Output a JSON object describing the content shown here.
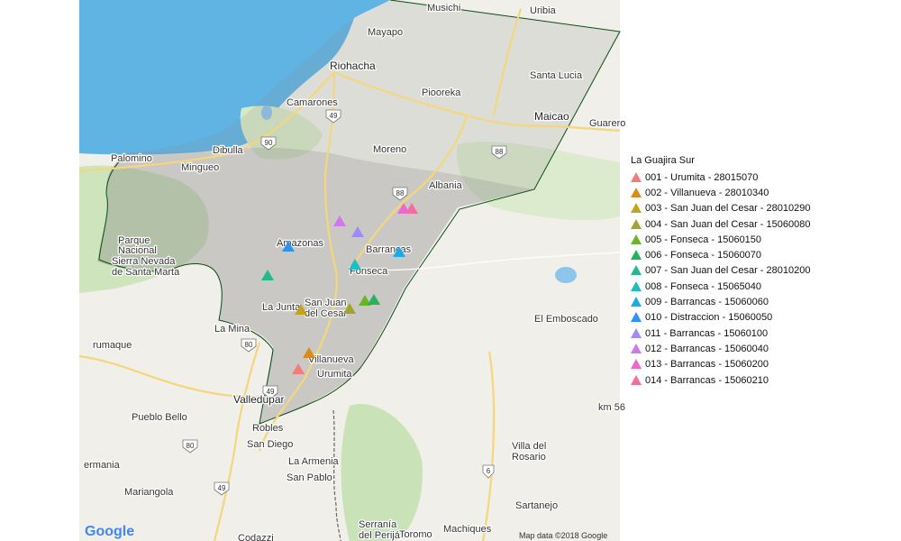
{
  "map": {
    "attribution": "Map data ©2018 Google",
    "logo": "Google",
    "colors": {
      "sea": "#5fb4e4",
      "land": "#f0efe9",
      "forest": "#c9e2b8",
      "region_overlay": "#8a8a8a",
      "border": "#0b4d12"
    },
    "places": [
      {
        "name": "Musichi",
        "cls": "citytext"
      },
      {
        "name": "Uribia",
        "cls": "citytext"
      },
      {
        "name": "Mayapo",
        "cls": "citytext"
      },
      {
        "name": "Riohacha",
        "cls": "bigtext"
      },
      {
        "name": "Santa Lucia",
        "cls": "citytext"
      },
      {
        "name": "Camarones",
        "cls": "citytext"
      },
      {
        "name": "Piooreka",
        "cls": "citytext"
      },
      {
        "name": "Maicao",
        "cls": "bigtext"
      },
      {
        "name": "Guarero",
        "cls": "citytext"
      },
      {
        "name": "Moreno",
        "cls": "citytext"
      },
      {
        "name": "Dibulla",
        "cls": "citytext"
      },
      {
        "name": "Palomino",
        "cls": "citytext"
      },
      {
        "name": "Mingueo",
        "cls": "citytext"
      },
      {
        "name": "Albania",
        "cls": "citytext"
      },
      {
        "name": "Amazonas",
        "cls": "citytext"
      },
      {
        "name": "Barrancas",
        "cls": "citytext"
      },
      {
        "name": "Fonseca",
        "cls": "citytext"
      },
      {
        "name": "San Juan",
        "cls": "citytext"
      },
      {
        "name": "del Cesar",
        "cls": "citytext"
      },
      {
        "name": "La Junta",
        "cls": "citytext"
      },
      {
        "name": "La Mina",
        "cls": "citytext"
      },
      {
        "name": "rumaque",
        "cls": "citytext"
      },
      {
        "name": "Villanueva",
        "cls": "citytext"
      },
      {
        "name": "Urumita",
        "cls": "citytext"
      },
      {
        "name": "Valledupar",
        "cls": "bigtext"
      },
      {
        "name": "Pueblo Bello",
        "cls": "citytext"
      },
      {
        "name": "Robles",
        "cls": "citytext"
      },
      {
        "name": "San Diego",
        "cls": "citytext"
      },
      {
        "name": "La Armenia",
        "cls": "citytext"
      },
      {
        "name": "San Pablo",
        "cls": "citytext"
      },
      {
        "name": "ermania",
        "cls": "citytext"
      },
      {
        "name": "Mariangola",
        "cls": "citytext"
      },
      {
        "name": "El Emboscado",
        "cls": "citytext"
      },
      {
        "name": "km 56",
        "cls": "citytext"
      },
      {
        "name": "Villa del",
        "cls": "citytext"
      },
      {
        "name": "Rosario",
        "cls": "citytext"
      },
      {
        "name": "Sartanejo",
        "cls": "citytext"
      },
      {
        "name": "Machiques",
        "cls": "citytext"
      },
      {
        "name": "Toromo",
        "cls": "citytext"
      },
      {
        "name": "Codazzi",
        "cls": "citytext"
      },
      {
        "name": "Serranía",
        "cls": "citytext"
      },
      {
        "name": "del Perijá",
        "cls": "citytext"
      },
      {
        "name": "Parque",
        "cls": "citytext"
      },
      {
        "name": "Nacional",
        "cls": "citytext"
      },
      {
        "name": "Sierra Nevada",
        "cls": "citytext"
      },
      {
        "name": "de Santa Marta",
        "cls": "citytext"
      }
    ],
    "route_shields": [
      "49",
      "90",
      "88",
      "88",
      "80",
      "49",
      "80",
      "49",
      "6"
    ]
  },
  "legend": {
    "title": "La Guajira Sur",
    "items": [
      {
        "label": "001 - Urumita - 28015070",
        "color": "#f07c7c"
      },
      {
        "label": "002 - Villanueva - 28010340",
        "color": "#d98c1a"
      },
      {
        "label": "003 - San Juan del Cesar - 28010290",
        "color": "#c4a21c"
      },
      {
        "label": "004 - San Juan del Cesar - 15060080",
        "color": "#a3a52a"
      },
      {
        "label": "005 - Fonseca - 15060150",
        "color": "#6ab42a"
      },
      {
        "label": "006 - Fonseca - 15060070",
        "color": "#24b25a"
      },
      {
        "label": "007 - San Juan del Cesar - 28010200",
        "color": "#22b98e"
      },
      {
        "label": "008 - Fonseca - 15065040",
        "color": "#1fbdc0"
      },
      {
        "label": "009 - Barrancas - 15060060",
        "color": "#19ace6"
      },
      {
        "label": "010 - Distraccion - 15060050",
        "color": "#2f93f0"
      },
      {
        "label": "011 - Barrancas - 15060100",
        "color": "#a08cf0"
      },
      {
        "label": "012 - Barrancas - 15060040",
        "color": "#cf78ec"
      },
      {
        "label": "013 - Barrancas - 15060200",
        "color": "#ee66d2"
      },
      {
        "label": "014 - Barrancas - 15060210",
        "color": "#f06ea2"
      }
    ]
  }
}
